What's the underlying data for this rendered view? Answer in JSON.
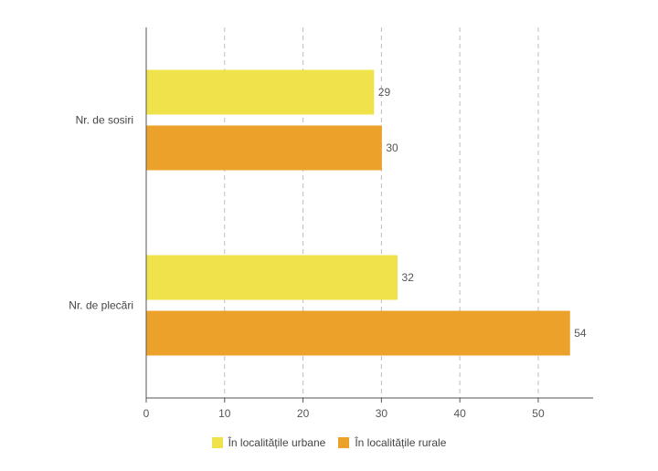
{
  "chart_data": {
    "type": "bar",
    "orientation": "horizontal",
    "categories": [
      "Nr. de sosiri",
      "Nr. de plecări"
    ],
    "series": [
      {
        "name": "În localitățile urbane",
        "values": [
          29,
          32
        ],
        "color": "#f0e24a"
      },
      {
        "name": "În localitățile rurale",
        "values": [
          30,
          54
        ],
        "color": "#eca22a"
      }
    ],
    "xlim": [
      0,
      57
    ],
    "xticks": [
      0,
      10,
      20,
      30,
      40,
      50
    ],
    "grid": true,
    "legend_position": "bottom"
  }
}
